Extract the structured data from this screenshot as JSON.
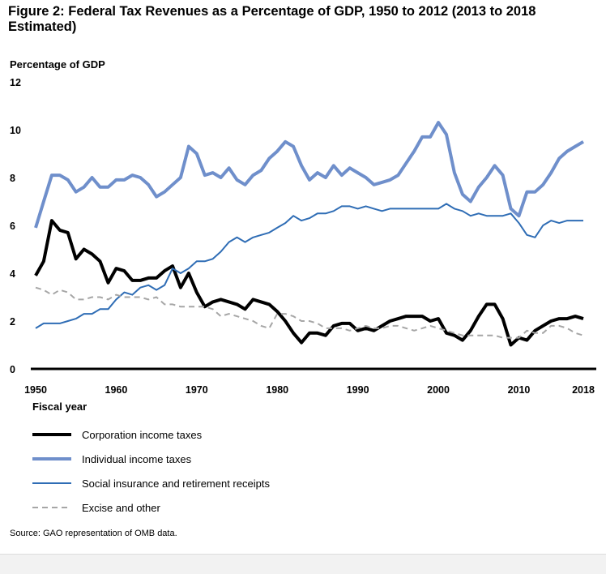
{
  "chart_data": {
    "type": "line",
    "title": "Figure 2: Federal Tax Revenues as a Percentage of GDP, 1950 to 2012 (2013 to 2018 Estimated)",
    "ylabel": "Percentage of GDP",
    "xlabel": "Fiscal year",
    "xlim": [
      1950,
      2018
    ],
    "ylim": [
      0,
      12
    ],
    "xticks": [
      1950,
      1960,
      1970,
      1980,
      1990,
      2000,
      2010,
      2018
    ],
    "yticks": [
      0,
      2,
      4,
      6,
      8,
      10,
      12
    ],
    "grid": false,
    "legend_position": "bottom",
    "x_start": 1950,
    "series": [
      {
        "name": "Corporation income taxes",
        "color": "#000000",
        "style": "solid-thick",
        "values": [
          3.9,
          4.5,
          6.2,
          5.8,
          5.7,
          4.6,
          5.0,
          4.8,
          4.5,
          3.6,
          4.2,
          4.1,
          3.7,
          3.7,
          3.8,
          3.8,
          4.1,
          4.3,
          3.4,
          4.0,
          3.2,
          2.6,
          2.8,
          2.9,
          2.8,
          2.7,
          2.5,
          2.9,
          2.8,
          2.7,
          2.4,
          2.0,
          1.5,
          1.1,
          1.5,
          1.5,
          1.4,
          1.8,
          1.9,
          1.9,
          1.6,
          1.7,
          1.6,
          1.8,
          2.0,
          2.1,
          2.2,
          2.2,
          2.2,
          2.0,
          2.1,
          1.5,
          1.4,
          1.2,
          1.6,
          2.2,
          2.7,
          2.7,
          2.1,
          1.0,
          1.3,
          1.2,
          1.6,
          1.8,
          2.0,
          2.1,
          2.1,
          2.2,
          2.1
        ]
      },
      {
        "name": "Individual income taxes",
        "color": "#6f8fcb",
        "style": "solid-thick",
        "values": [
          5.9,
          7.0,
          8.1,
          8.1,
          7.9,
          7.4,
          7.6,
          8.0,
          7.6,
          7.6,
          7.9,
          7.9,
          8.1,
          8.0,
          7.7,
          7.2,
          7.4,
          7.7,
          8.0,
          9.3,
          9.0,
          8.1,
          8.2,
          8.0,
          8.4,
          7.9,
          7.7,
          8.1,
          8.3,
          8.8,
          9.1,
          9.5,
          9.3,
          8.5,
          7.9,
          8.2,
          8.0,
          8.5,
          8.1,
          8.4,
          8.2,
          8.0,
          7.7,
          7.8,
          7.9,
          8.1,
          8.6,
          9.1,
          9.7,
          9.7,
          10.3,
          9.8,
          8.2,
          7.3,
          7.0,
          7.6,
          8.0,
          8.5,
          8.1,
          6.7,
          6.4,
          7.4,
          7.4,
          7.7,
          8.2,
          8.8,
          9.1,
          9.3,
          9.5
        ]
      },
      {
        "name": "Social insurance and retirement receipts",
        "color": "#2f6db5",
        "style": "solid-thin",
        "values": [
          1.7,
          1.9,
          1.9,
          1.9,
          2.0,
          2.1,
          2.3,
          2.3,
          2.5,
          2.5,
          2.9,
          3.2,
          3.1,
          3.4,
          3.5,
          3.3,
          3.5,
          4.2,
          4.0,
          4.2,
          4.5,
          4.5,
          4.6,
          4.9,
          5.3,
          5.5,
          5.3,
          5.5,
          5.6,
          5.7,
          5.9,
          6.1,
          6.4,
          6.2,
          6.3,
          6.5,
          6.5,
          6.6,
          6.8,
          6.8,
          6.7,
          6.8,
          6.7,
          6.6,
          6.7,
          6.7,
          6.7,
          6.7,
          6.7,
          6.7,
          6.7,
          6.9,
          6.7,
          6.6,
          6.4,
          6.5,
          6.4,
          6.4,
          6.4,
          6.5,
          6.1,
          5.6,
          5.5,
          6.0,
          6.2,
          6.1,
          6.2,
          6.2,
          6.2
        ]
      },
      {
        "name": "Excise and other",
        "color": "#a6a6a6",
        "style": "dashed",
        "values": [
          3.4,
          3.3,
          3.1,
          3.3,
          3.2,
          2.9,
          2.9,
          3.0,
          3.0,
          2.9,
          3.1,
          3.0,
          3.0,
          3.0,
          2.9,
          3.0,
          2.7,
          2.7,
          2.6,
          2.6,
          2.6,
          2.6,
          2.5,
          2.2,
          2.3,
          2.2,
          2.1,
          2.0,
          1.8,
          1.7,
          2.3,
          2.3,
          2.2,
          2.0,
          2.0,
          1.9,
          1.7,
          1.7,
          1.7,
          1.6,
          1.7,
          1.8,
          1.7,
          1.7,
          1.8,
          1.8,
          1.7,
          1.6,
          1.7,
          1.8,
          1.7,
          1.6,
          1.5,
          1.4,
          1.4,
          1.4,
          1.4,
          1.4,
          1.3,
          1.3,
          1.3,
          1.6,
          1.5,
          1.5,
          1.8,
          1.8,
          1.7,
          1.5,
          1.4
        ]
      }
    ]
  },
  "source": "Source: GAO representation of OMB data."
}
